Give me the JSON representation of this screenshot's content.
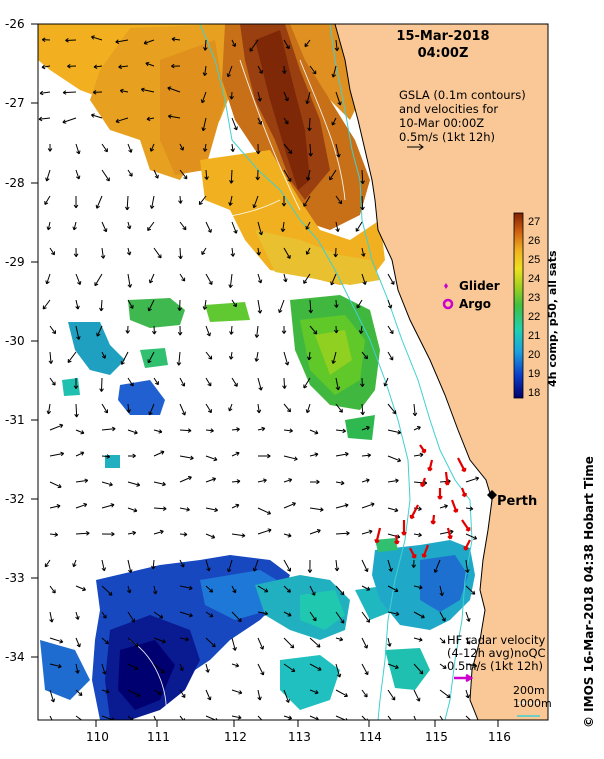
{
  "title": {
    "date": "15-Mar-2018",
    "time": "04:00Z"
  },
  "gsla": {
    "line1": "GSLA (0.1m contours)",
    "line2": "and velocities for",
    "line3": "10-Mar 00:00Z",
    "line4": "0.5m/s (1kt 12h)"
  },
  "axes": {
    "lon_ticks": [
      "110",
      "111",
      "112",
      "113",
      "114",
      "115",
      "116"
    ],
    "lat_ticks": [
      "-26",
      "-27",
      "-28",
      "-29",
      "-30",
      "-31",
      "-32",
      "-33",
      "-34"
    ]
  },
  "colorbar": {
    "ticks": [
      "27",
      "26",
      "25",
      "24",
      "23",
      "22",
      "21",
      "20",
      "19",
      "18"
    ],
    "label": "4h comp, p50, all sats"
  },
  "legend": {
    "glider": "Glider",
    "argo": "Argo"
  },
  "city": {
    "name": "Perth"
  },
  "hf_radar": {
    "line1": "HF radar velocity",
    "line2": "(4-12h avg)noQC",
    "line3": "0.5m/s (1kt 12h)"
  },
  "depth": {
    "d200": "200m",
    "d1000": "1000m"
  },
  "credit": "© IMOS 16-Mar-2018 04:38 Hobart Time",
  "colors": {
    "land": "#f9c896",
    "isobath": "#40d0d0",
    "hf_arrows": "#e00000",
    "glider": "#cc00cc",
    "perth": "#000000"
  }
}
